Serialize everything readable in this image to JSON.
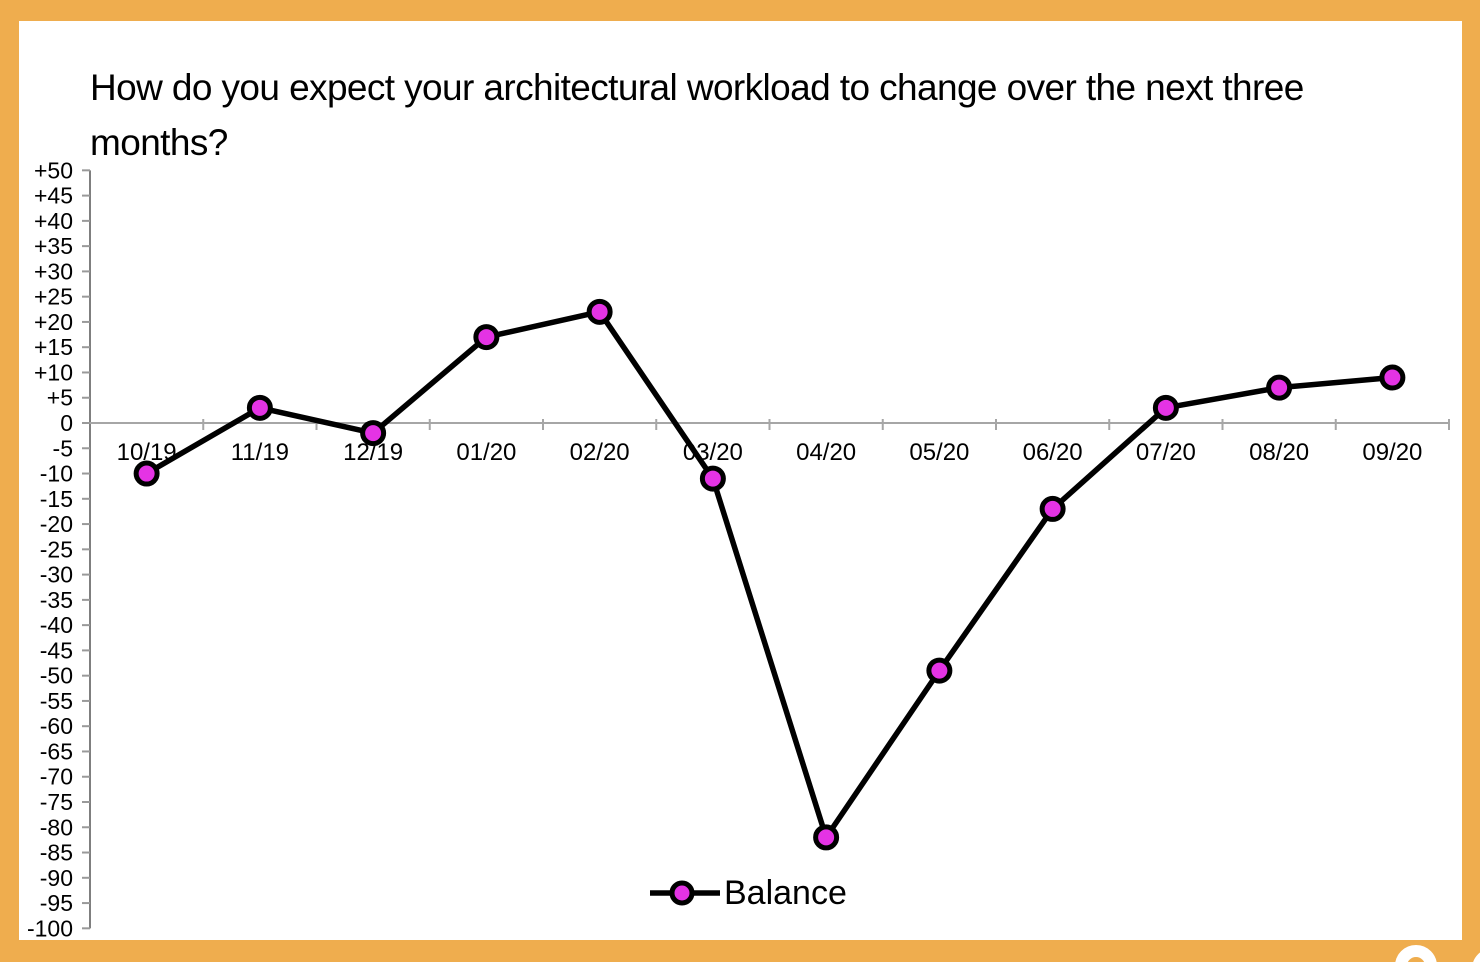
{
  "title": "How do you expect your architectural workload to change over the next three months?",
  "colors": {
    "frame_orange": "#EFAD4E",
    "marker_magenta": "#E433E4",
    "series_line_black": "#000000",
    "zero_line_gray": "#A6A6A6",
    "axis_gray": "#7F7F7F",
    "tick_gray": "#999999",
    "background_white": "#FFFFFF"
  },
  "legend": {
    "label": "Balance",
    "position": "bottom-center"
  },
  "chart_data": {
    "type": "line",
    "title": "How do you expect your architectural workload to change over the next three months?",
    "categories": [
      "10/19",
      "11/19",
      "12/19",
      "01/20",
      "02/20",
      "03/20",
      "04/20",
      "05/20",
      "06/20",
      "07/20",
      "08/20",
      "09/20"
    ],
    "series": [
      {
        "name": "Balance",
        "values": [
          -10,
          3,
          -2,
          17,
          22,
          -11,
          -82,
          -49,
          -17,
          3,
          7,
          9
        ]
      }
    ],
    "xlabel": "",
    "ylabel": "",
    "ylim": [
      -100,
      50
    ],
    "ytick_step": 5,
    "ytick_labels": [
      "+50",
      "+45",
      "+40",
      "+35",
      "+30",
      "+25",
      "+20",
      "+15",
      "+10",
      "+5",
      "0",
      "-5",
      "-10",
      "-15",
      "-20",
      "-25",
      "-30",
      "-35",
      "-40",
      "-45",
      "-50",
      "-55",
      "-60",
      "-65",
      "-70",
      "-75",
      "-80",
      "-85",
      "-90",
      "-95",
      "-100"
    ],
    "grid": false,
    "zero_line": true,
    "legend_position": "bottom-center",
    "legend_label": "Balance"
  }
}
